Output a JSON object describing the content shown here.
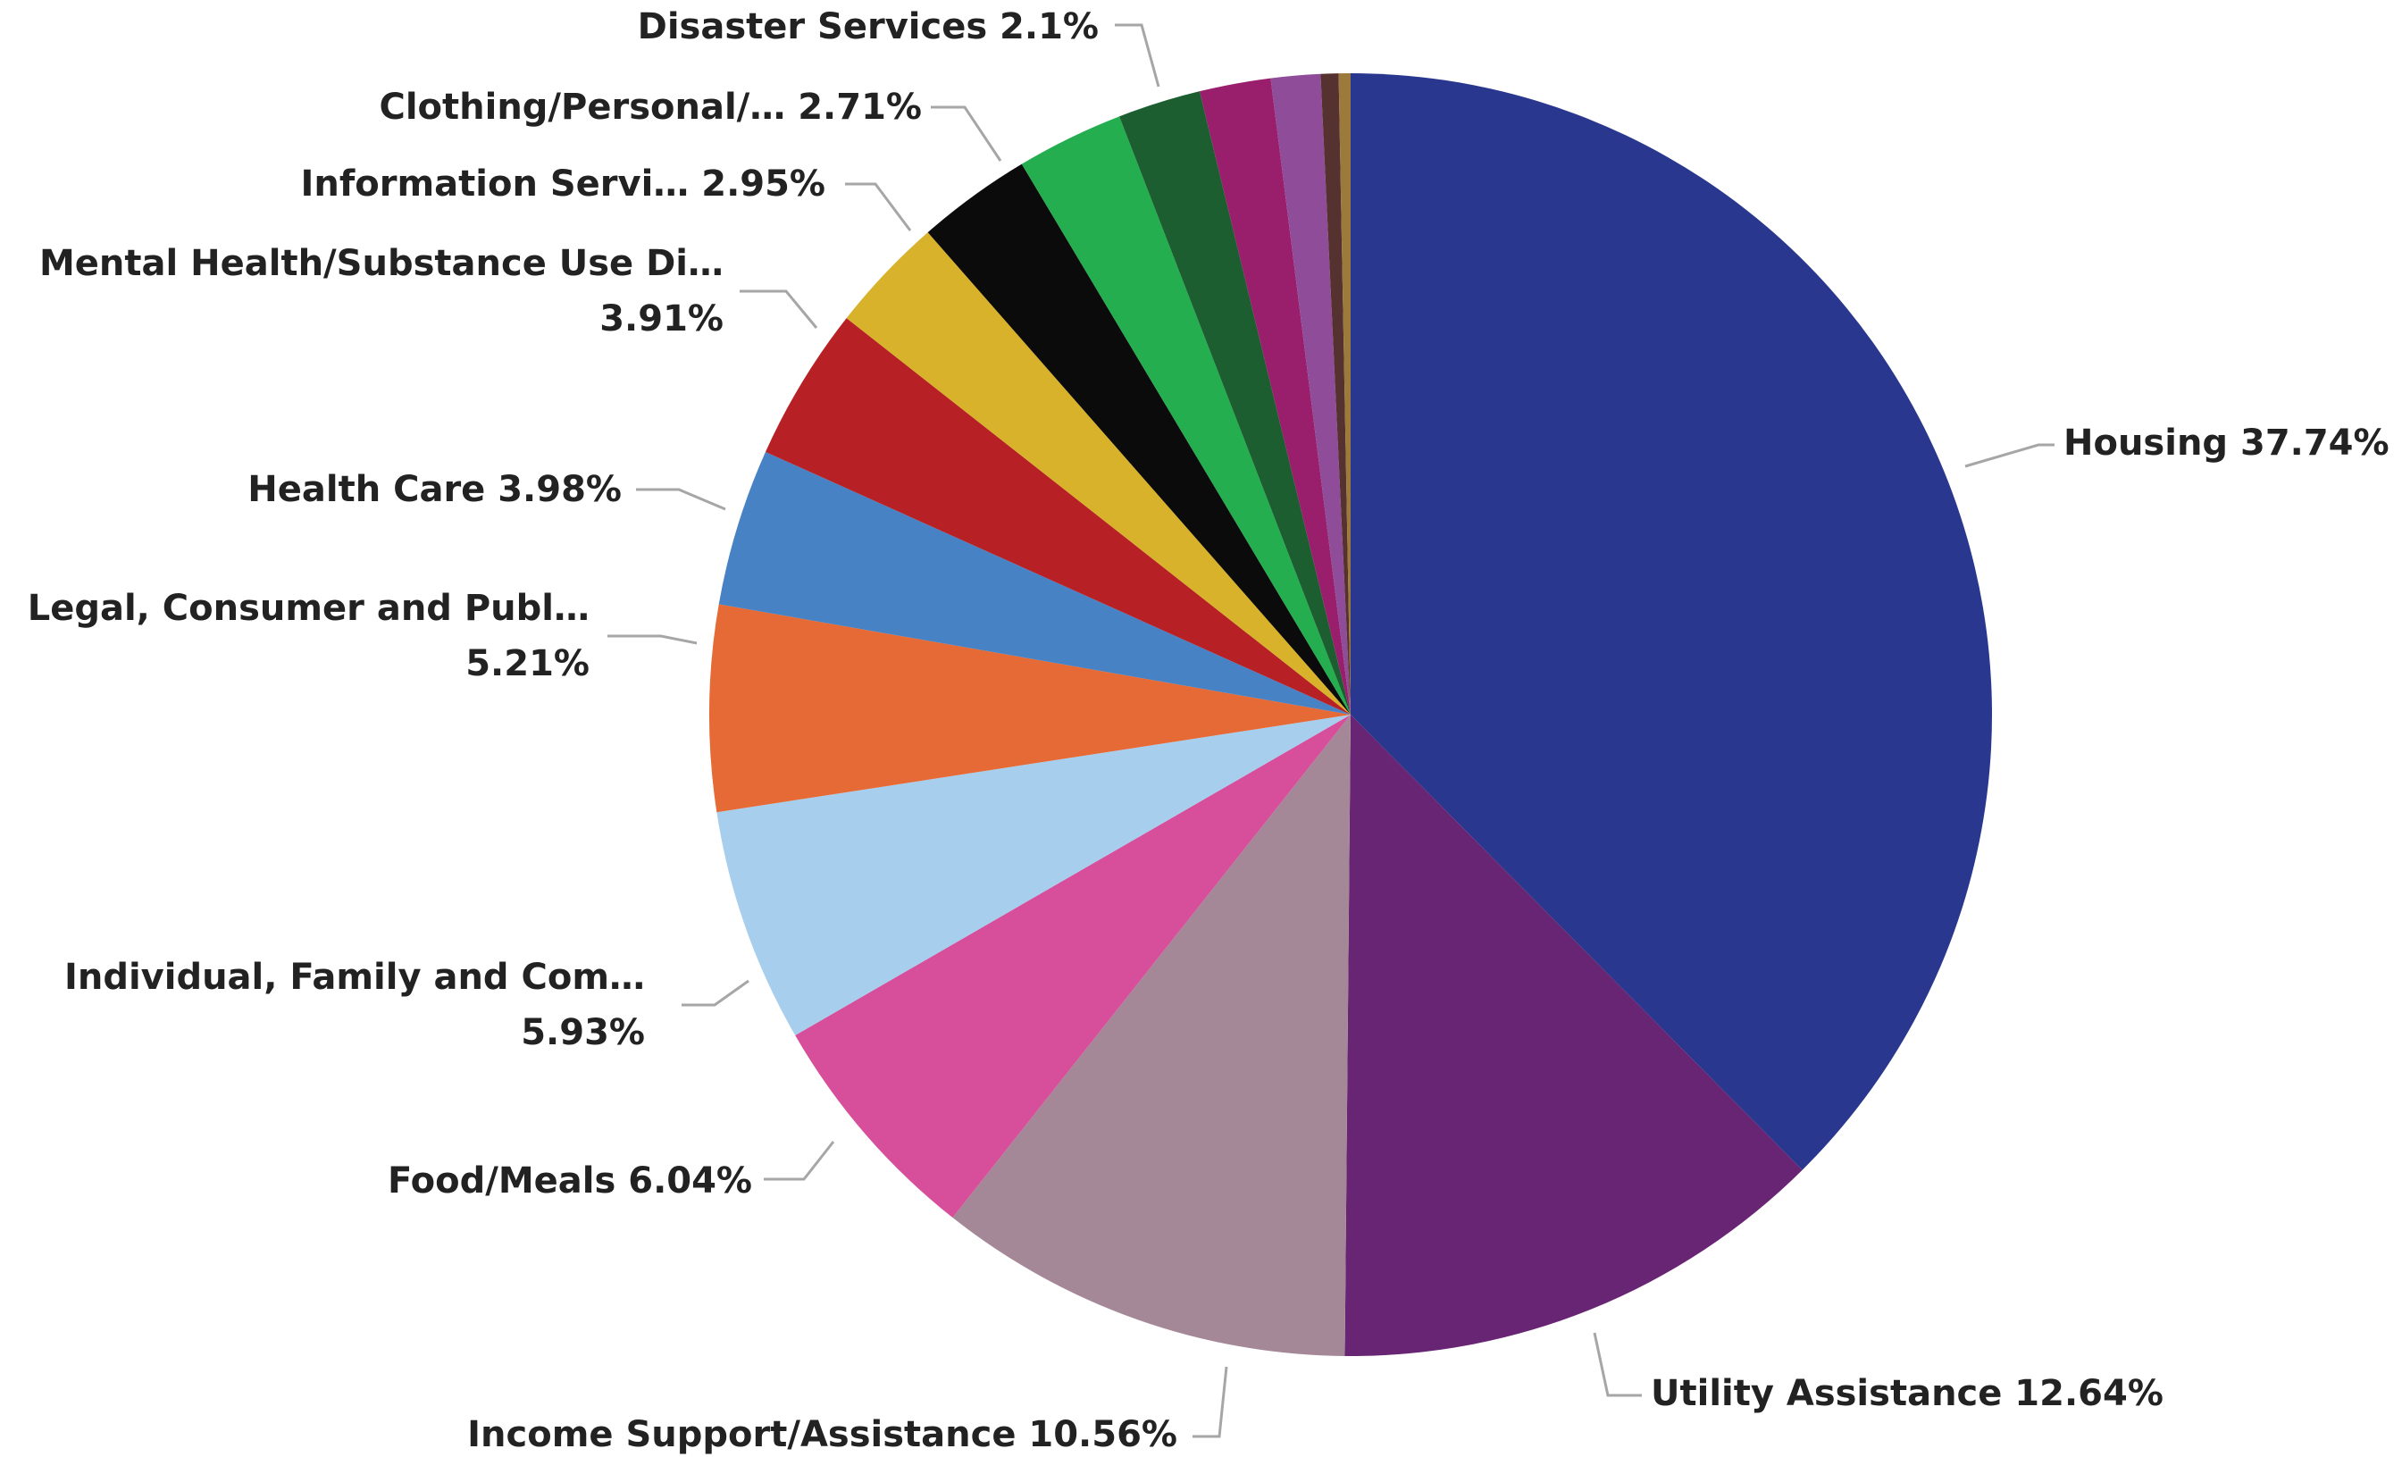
{
  "chart_data": {
    "type": "pie",
    "title": "",
    "slices": [
      {
        "label": "Housing 37.74%",
        "value": 37.74,
        "color": "#29378F"
      },
      {
        "label": "Utility Assistance 12.64%",
        "value": 12.64,
        "color": "#682574"
      },
      {
        "label": "Income Support/Assistance 10.56%",
        "value": 10.56,
        "color": "#A58898"
      },
      {
        "label": "Food/Meals 6.04%",
        "value": 6.04,
        "color": "#D74E9B"
      },
      {
        "label": [
          "Individual, Family and Com…",
          "5.93%"
        ],
        "value": 5.93,
        "color": "#A8CEEE"
      },
      {
        "label": [
          "Legal, Consumer and Publ…",
          "5.21%"
        ],
        "value": 5.21,
        "color": "#E56A35"
      },
      {
        "label": "Health Care 3.98%",
        "value": 3.98,
        "color": "#4782C4"
      },
      {
        "label": [
          "Mental Health/Substance Use Di…",
          "3.91%"
        ],
        "value": 3.91,
        "color": "#B72025"
      },
      {
        "label": "Information Servi… 2.95%",
        "value": 2.95,
        "color": "#D7B22A"
      },
      {
        "label": "",
        "value": 2.9,
        "color": "#0B0B0B"
      },
      {
        "label": "Clothing/Personal/… 2.71%",
        "value": 2.71,
        "color": "#24AE4F"
      },
      {
        "label": "Disaster Services 2.1%",
        "value": 2.1,
        "color": "#1D5E31"
      },
      {
        "label": "",
        "value": 1.8,
        "color": "#991E6B"
      },
      {
        "label": "",
        "value": 1.25,
        "color": "#8E4C99"
      },
      {
        "label": "",
        "value": 0.45,
        "color": "#55312F"
      },
      {
        "label": "",
        "value": 0.3,
        "color": "#9C7A3C"
      }
    ]
  }
}
